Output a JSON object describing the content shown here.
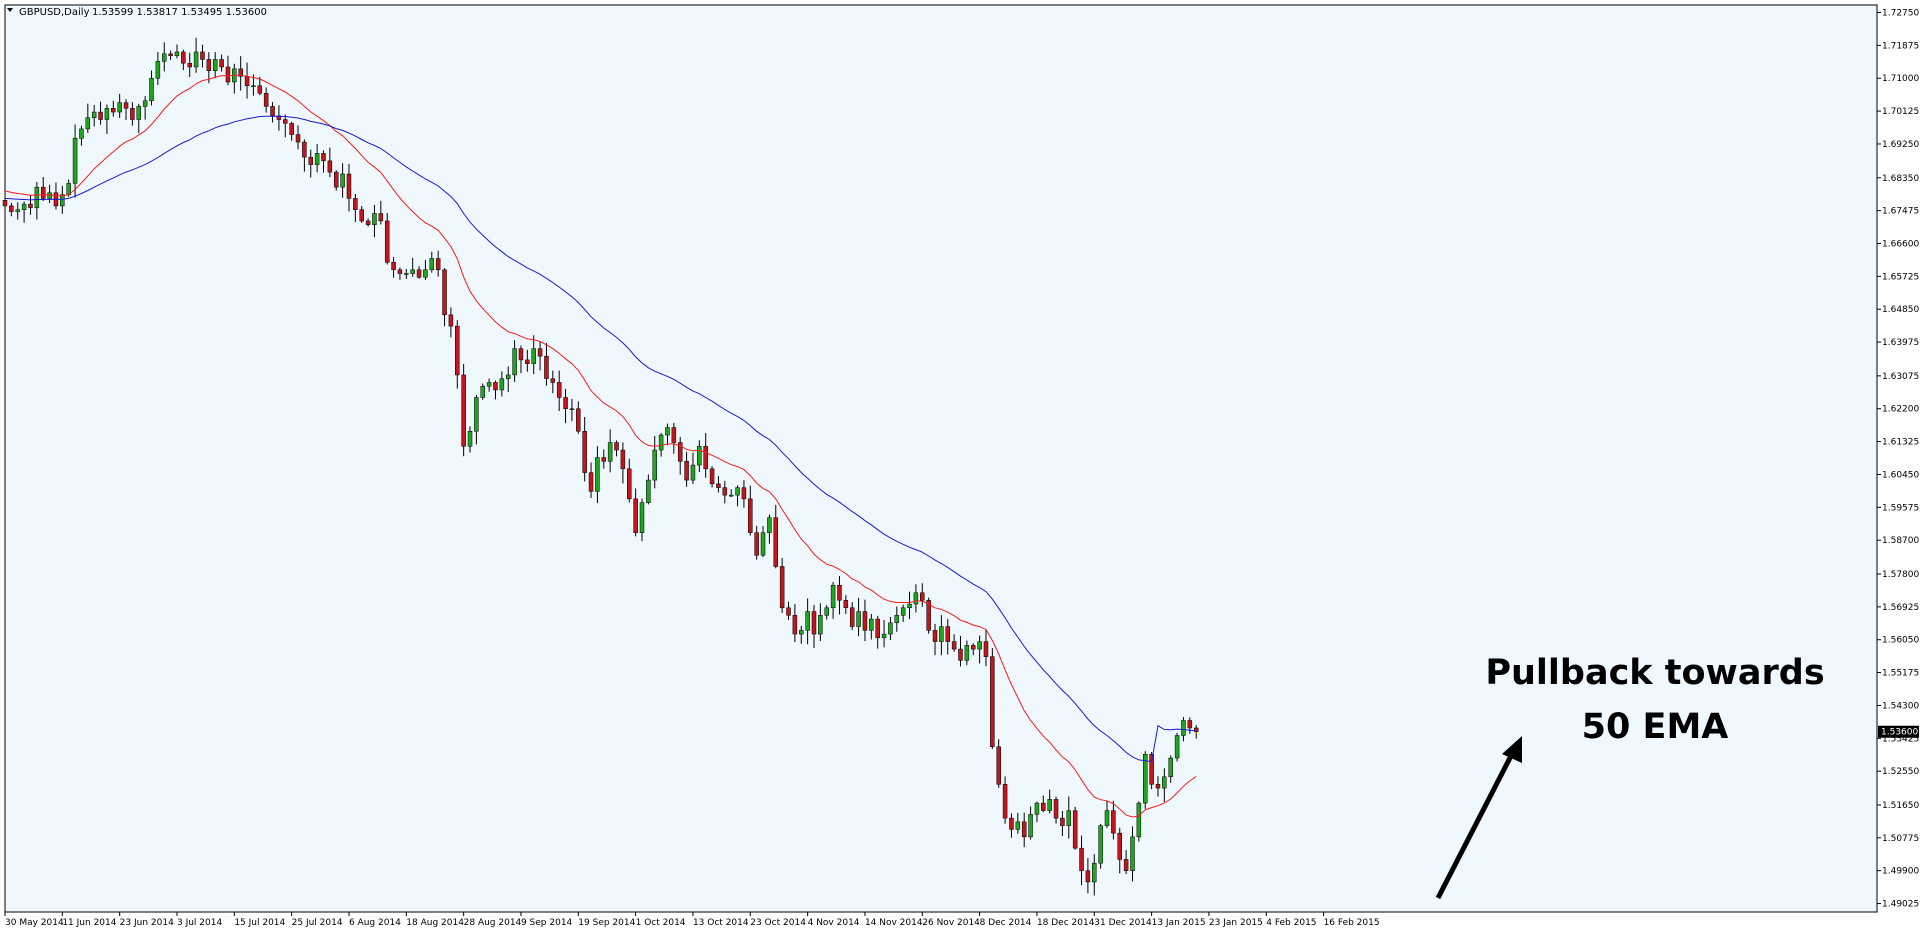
{
  "window": {
    "title": "GBPUSD,Daily",
    "ohlc": "1.53599 1.53817 1.53495 1.53600"
  },
  "price_tag": "1.53600",
  "annotation": {
    "line1": "Pullback towards",
    "line2": "50 EMA"
  },
  "colors": {
    "background": "#f0f8ff",
    "bull_candle": "#1fa51f",
    "bear_candle": "#c0161c",
    "wick": "#000000",
    "ema_fast": "#ff1a1a",
    "ema_slow": "#1a1acc",
    "axis": "#000000",
    "arrow": "#000000"
  },
  "chart_data": {
    "type": "candlestick",
    "symbol": "GBPUSD",
    "timeframe": "Daily",
    "title": "GBPUSD,Daily",
    "ylim": [
      1.488,
      1.7295
    ],
    "y_ticks": [
      "1.72750",
      "1.71875",
      "1.71000",
      "1.70125",
      "1.69250",
      "1.68350",
      "1.67475",
      "1.66600",
      "1.65725",
      "1.64850",
      "1.63975",
      "1.63075",
      "1.62200",
      "1.61325",
      "1.60450",
      "1.59575",
      "1.58700",
      "1.57800",
      "1.56925",
      "1.56050",
      "1.55175",
      "1.54300",
      "1.53425",
      "1.52550",
      "1.51650",
      "1.50775",
      "1.49900",
      "1.49025"
    ],
    "x_ticks": [
      "30 May 2014",
      "11 Jun 2014",
      "23 Jun 2014",
      "3 Jul 2014",
      "15 Jul 2014",
      "25 Jul 2014",
      "6 Aug 2014",
      "18 Aug 2014",
      "28 Aug 2014",
      "9 Sep 2014",
      "19 Sep 2014",
      "1 Oct 2014",
      "13 Oct 2014",
      "23 Oct 2014",
      "4 Nov 2014",
      "14 Nov 2014",
      "26 Nov 2014",
      "8 Dec 2014",
      "18 Dec 2014",
      "31 Dec 2014",
      "13 Jan 2015",
      "23 Jan 2015",
      "4 Feb 2015",
      "16 Feb 2015"
    ],
    "bars_per_tick": 9,
    "closes": [
      1.676,
      1.6745,
      1.675,
      1.6765,
      1.6755,
      1.681,
      1.678,
      1.6795,
      1.676,
      1.679,
      1.682,
      1.694,
      1.6965,
      1.6995,
      1.701,
      1.699,
      1.702,
      1.701,
      1.7035,
      1.702,
      1.699,
      1.7025,
      1.704,
      1.71,
      1.7145,
      1.7165,
      1.716,
      1.717,
      1.714,
      1.713,
      1.717,
      1.715,
      1.712,
      1.715,
      1.713,
      1.709,
      1.7125,
      1.7105,
      1.708,
      1.708,
      1.706,
      1.7025,
      1.7,
      1.699,
      1.698,
      1.695,
      1.693,
      1.689,
      1.687,
      1.69,
      1.688,
      1.685,
      1.681,
      1.6845,
      1.678,
      1.675,
      1.672,
      1.671,
      1.674,
      1.672,
      1.661,
      1.659,
      1.658,
      1.658,
      1.659,
      1.657,
      1.659,
      1.662,
      1.659,
      1.647,
      1.644,
      1.631,
      1.612,
      1.616,
      1.625,
      1.628,
      1.629,
      1.627,
      1.63,
      1.631,
      1.638,
      1.635,
      1.634,
      1.638,
      1.636,
      1.63,
      1.629,
      1.625,
      1.622,
      1.622,
      1.616,
      1.605,
      1.6,
      1.609,
      1.608,
      1.613,
      1.611,
      1.606,
      1.598,
      1.589,
      1.597,
      1.603,
      1.611,
      1.615,
      1.617,
      1.613,
      1.608,
      1.603,
      1.607,
      1.612,
      1.606,
      1.602,
      1.601,
      1.599,
      1.599,
      1.601,
      1.598,
      1.589,
      1.583,
      1.589,
      1.593,
      1.58,
      1.569,
      1.567,
      1.562,
      1.563,
      1.568,
      1.562,
      1.567,
      1.569,
      1.575,
      1.571,
      1.569,
      1.564,
      1.568,
      1.563,
      1.566,
      1.561,
      1.562,
      1.565,
      1.567,
      1.569,
      1.57,
      1.573,
      1.571,
      1.563,
      1.56,
      1.564,
      1.56,
      1.558,
      1.555,
      1.559,
      1.558,
      1.56,
      1.556,
      1.532,
      1.522,
      1.513,
      1.51,
      1.512,
      1.508,
      1.514,
      1.517,
      1.515,
      1.518,
      1.513,
      1.511,
      1.515,
      1.505,
      1.499,
      1.496,
      1.501,
      1.511,
      1.515,
      1.509,
      1.502,
      1.499,
      1.508,
      1.517,
      1.53,
      1.522,
      1.521,
      1.524,
      1.529,
      1.535,
      1.539,
      1.537,
      1.536
    ],
    "series": [
      {
        "name": "",
        "values": [
          1.68,
          1.6796,
          1.6793,
          1.6791,
          1.6788,
          1.679,
          1.6789,
          1.679,
          1.6787,
          1.6787,
          1.679,
          1.6804,
          1.6821,
          1.684,
          1.6859,
          1.6874,
          1.689,
          1.6904,
          1.6919,
          1.6931,
          1.6938,
          1.6949,
          1.696,
          1.6977,
          1.6997,
          1.7018,
          1.7036,
          1.7053,
          1.7064,
          1.7073,
          1.7085,
          1.7094,
          1.7097,
          1.7103,
          1.7107,
          1.7106,
          1.7108,
          1.7108,
          1.7105,
          1.7102,
          1.7098,
          1.709,
          1.7081,
          1.7072,
          1.7063,
          1.7052,
          1.704,
          1.7025,
          1.701,
          1.6999,
          1.6987,
          1.6974,
          1.6958,
          1.6947,
          1.693,
          1.6913,
          1.6894,
          1.6876,
          1.6863,
          1.6849,
          1.6826,
          1.6803,
          1.6781,
          1.6762,
          1.6745,
          1.6728,
          1.6715,
          1.6706,
          1.6695,
          1.6674,
          1.6652,
          1.6619,
          1.6571,
          1.6533,
          1.6507,
          1.6487,
          1.6469,
          1.6451,
          1.6437,
          1.6425,
          1.642,
          1.6413,
          1.6406,
          1.6404,
          1.6399,
          1.639,
          1.638,
          1.6367,
          1.6353,
          1.634,
          1.6322,
          1.6296,
          1.6268,
          1.6251,
          1.6235,
          1.6225,
          1.6214,
          1.6199,
          1.6177,
          1.6149,
          1.6132,
          1.6122,
          1.612,
          1.6122,
          1.6126,
          1.6126,
          1.6121,
          1.6112,
          1.6108,
          1.6109,
          1.6104,
          1.6096,
          1.6088,
          1.6079,
          1.6071,
          1.6066,
          1.6058,
          1.6042,
          1.6022,
          1.6008,
          1.5999,
          1.598,
          1.5952,
          1.5926,
          1.5898,
          1.5873,
          1.5855,
          1.5833,
          1.5818,
          1.5806,
          1.5801,
          1.5792,
          1.5781,
          1.5767,
          1.5759,
          1.5745,
          1.5737,
          1.5724,
          1.5713,
          1.5707,
          1.5704,
          1.5704,
          1.5704,
          1.5708,
          1.5708,
          1.57,
          1.569,
          1.5686,
          1.5678,
          1.5669,
          1.5657,
          1.5651,
          1.5644,
          1.564,
          1.5632,
          1.5603,
          1.5567,
          1.5525,
          1.5485,
          1.5451,
          1.5416,
          1.539,
          1.5369,
          1.5348,
          1.5332,
          1.5312,
          1.5293,
          1.528,
          1.5258,
          1.5232,
          1.5206,
          1.5186,
          1.5179,
          1.5176,
          1.5168,
          1.5154,
          1.5138,
          1.5133,
          1.5136,
          1.5152,
          1.5158,
          1.5163,
          1.517,
          1.5181,
          1.5197,
          1.5215,
          1.5229,
          1.5241
        ]
      },
      {
        "name": "",
        "values": [
          1.678,
          1.6779,
          1.6778,
          1.6777,
          1.6776,
          1.6777,
          1.6777,
          1.6778,
          1.6777,
          1.6778,
          1.678,
          1.6786,
          1.6793,
          1.6801,
          1.681,
          1.6818,
          1.6827,
          1.6834,
          1.6843,
          1.685,
          1.6856,
          1.6863,
          1.687,
          1.6879,
          1.6889,
          1.69,
          1.691,
          1.692,
          1.6929,
          1.6936,
          1.6946,
          1.6954,
          1.696,
          1.6968,
          1.6974,
          1.6978,
          1.6984,
          1.6988,
          1.6992,
          1.6995,
          1.6998,
          1.6999,
          1.6999,
          1.6999,
          1.6998,
          1.6996,
          1.6994,
          1.699,
          1.6985,
          1.6982,
          1.6978,
          1.6973,
          1.6966,
          1.6961,
          1.6954,
          1.6946,
          1.6937,
          1.6928,
          1.6921,
          1.6913,
          1.6901,
          1.6888,
          1.6876,
          1.6864,
          1.6853,
          1.6842,
          1.6832,
          1.6823,
          1.6813,
          1.6799,
          1.6785,
          1.6766,
          1.674,
          1.6717,
          1.6698,
          1.6682,
          1.6666,
          1.6651,
          1.6638,
          1.6625,
          1.6615,
          1.6605,
          1.6595,
          1.6587,
          1.6578,
          1.6567,
          1.6556,
          1.6544,
          1.6531,
          1.6518,
          1.6503,
          1.6484,
          1.6465,
          1.645,
          1.6435,
          1.6423,
          1.641,
          1.6395,
          1.6378,
          1.6358,
          1.6342,
          1.6329,
          1.632,
          1.6313,
          1.6306,
          1.6298,
          1.6288,
          1.6277,
          1.6267,
          1.626,
          1.625,
          1.624,
          1.6229,
          1.6218,
          1.6208,
          1.6199,
          1.6189,
          1.6175,
          1.616,
          1.6148,
          1.6138,
          1.6123,
          1.6104,
          1.6087,
          1.6068,
          1.605,
          1.6035,
          1.6019,
          1.6005,
          1.5992,
          1.5982,
          1.5971,
          1.5959,
          1.5946,
          1.5935,
          1.5922,
          1.5911,
          1.5898,
          1.5886,
          1.5876,
          1.5867,
          1.5859,
          1.5851,
          1.5845,
          1.5838,
          1.5828,
          1.5817,
          1.5808,
          1.5797,
          1.5786,
          1.5774,
          1.5764,
          1.5753,
          1.5744,
          1.5733,
          1.5713,
          1.5689,
          1.5663,
          1.5636,
          1.5612,
          1.5587,
          1.5565,
          1.5545,
          1.5525,
          1.5507,
          1.5488,
          1.547,
          1.5454,
          1.5435,
          1.5415,
          1.5394,
          1.5376,
          1.5362,
          1.535,
          1.5336,
          1.5321,
          1.5305,
          1.5293,
          1.5285,
          1.5283,
          1.528,
          1.5376,
          1.5366,
          1.5365,
          1.5367,
          1.5366,
          1.5364,
          1.5362
        ]
      }
    ]
  }
}
